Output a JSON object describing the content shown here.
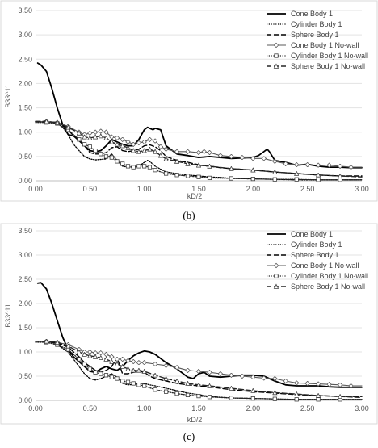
{
  "chart_data": [
    {
      "type": "line",
      "caption": "(b)",
      "xlabel": "kD/2",
      "ylabel": "B33^11",
      "xlim": [
        0,
        3
      ],
      "ylim": [
        0,
        3.5
      ],
      "xticks": [
        "0.00",
        "0.50",
        "1.00",
        "1.50",
        "2.00",
        "2.50",
        "3.00"
      ],
      "yticks": [
        "0.00",
        "0.50",
        "1.00",
        "1.50",
        "2.00",
        "2.50",
        "3.00",
        "3.50"
      ],
      "grid": "horizontal",
      "legend_position": "top-right",
      "series": [
        {
          "name": "Cone Body 1",
          "style": "solid",
          "x": [
            0.02,
            0.05,
            0.1,
            0.15,
            0.2,
            0.25,
            0.3,
            0.35,
            0.4,
            0.45,
            0.5,
            0.55,
            0.6,
            0.65,
            0.7,
            0.75,
            0.8,
            0.85,
            0.9,
            0.95,
            1.0,
            1.03,
            1.05,
            1.08,
            1.1,
            1.15,
            1.2,
            1.3,
            1.4,
            1.5,
            1.6,
            1.7,
            1.8,
            1.9,
            2.0,
            2.05,
            2.1,
            2.13,
            2.15,
            2.2,
            2.3,
            2.4,
            2.5,
            2.6,
            2.7,
            2.8,
            2.9,
            3.0
          ],
          "y": [
            2.42,
            2.38,
            2.25,
            1.9,
            1.5,
            1.15,
            0.95,
            0.92,
            0.85,
            0.72,
            0.62,
            0.6,
            0.62,
            0.72,
            0.85,
            0.8,
            0.75,
            0.72,
            0.72,
            0.85,
            1.05,
            1.1,
            1.08,
            1.05,
            1.08,
            1.05,
            0.72,
            0.55,
            0.52,
            0.48,
            0.5,
            0.48,
            0.46,
            0.47,
            0.48,
            0.52,
            0.6,
            0.65,
            0.6,
            0.42,
            0.38,
            0.32,
            0.34,
            0.3,
            0.28,
            0.28,
            0.27,
            0.27
          ]
        },
        {
          "name": "Cylinder Body 1",
          "style": "dotted",
          "x": [
            0,
            0.1,
            0.2,
            0.25,
            0.3,
            0.35,
            0.4,
            0.45,
            0.5,
            0.55,
            0.6,
            0.65,
            0.7,
            0.75,
            0.8,
            0.85,
            0.9,
            0.95,
            1.0,
            1.03,
            1.06,
            1.1,
            1.2,
            1.3,
            1.4,
            1.5,
            1.6,
            1.7,
            1.8,
            2.0,
            2.2,
            2.4,
            2.6,
            2.8,
            3.0
          ],
          "y": [
            1.22,
            1.2,
            1.18,
            1.1,
            0.95,
            0.75,
            0.62,
            0.5,
            0.45,
            0.43,
            0.44,
            0.45,
            0.55,
            0.42,
            0.3,
            0.28,
            0.28,
            0.3,
            0.38,
            0.42,
            0.38,
            0.3,
            0.18,
            0.15,
            0.12,
            0.1,
            0.08,
            0.07,
            0.05,
            0.04,
            0.03,
            0.02,
            0.02,
            0.02,
            0.02
          ]
        },
        {
          "name": "Sphere Body 1",
          "style": "dashed",
          "x": [
            0,
            0.1,
            0.2,
            0.25,
            0.3,
            0.35,
            0.4,
            0.45,
            0.5,
            0.55,
            0.6,
            0.65,
            0.7,
            0.75,
            0.8,
            0.85,
            0.9,
            0.95,
            1.0,
            1.05,
            1.1,
            1.15,
            1.2,
            1.3,
            1.4,
            1.5,
            1.6,
            1.7,
            1.8,
            2.0,
            2.2,
            2.4,
            2.6,
            2.8,
            3.0
          ],
          "y": [
            1.22,
            1.22,
            1.2,
            1.15,
            1.05,
            0.92,
            0.82,
            0.72,
            0.58,
            0.55,
            0.55,
            0.58,
            0.68,
            0.7,
            0.62,
            0.6,
            0.62,
            0.65,
            0.72,
            0.74,
            0.7,
            0.62,
            0.5,
            0.42,
            0.38,
            0.33,
            0.3,
            0.27,
            0.25,
            0.22,
            0.18,
            0.15,
            0.12,
            0.1,
            0.1
          ]
        },
        {
          "name": "Cone Body 1 No-wall",
          "style": "solid-marker-diamond",
          "x": [
            0,
            0.1,
            0.2,
            0.3,
            0.4,
            0.45,
            0.5,
            0.55,
            0.6,
            0.65,
            0.7,
            0.75,
            0.8,
            0.85,
            0.9,
            0.95,
            1.0,
            1.05,
            1.1,
            1.15,
            1.2,
            1.3,
            1.4,
            1.5,
            1.55,
            1.6,
            1.7,
            1.8,
            1.9,
            2.0,
            2.1,
            2.2,
            2.3,
            2.4,
            2.5,
            2.6,
            2.7,
            2.8,
            2.9,
            3.0
          ],
          "y": [
            1.22,
            1.22,
            1.2,
            1.12,
            1.0,
            0.95,
            0.98,
            1.0,
            1.02,
            1.0,
            0.9,
            0.88,
            0.85,
            0.8,
            0.75,
            0.78,
            0.8,
            0.85,
            0.82,
            0.7,
            0.65,
            0.6,
            0.6,
            0.58,
            0.6,
            0.58,
            0.52,
            0.5,
            0.48,
            0.46,
            0.46,
            0.4,
            0.35,
            0.33,
            0.33,
            0.32,
            0.32,
            0.3,
            0.28,
            0.28
          ]
        },
        {
          "name": "Cylinder Body 1 No-wall",
          "style": "dotted-marker-square",
          "x": [
            0,
            0.1,
            0.2,
            0.3,
            0.4,
            0.45,
            0.5,
            0.55,
            0.6,
            0.65,
            0.7,
            0.75,
            0.8,
            0.85,
            0.9,
            0.95,
            1.0,
            1.05,
            1.1,
            1.2,
            1.3,
            1.4,
            1.5,
            1.6,
            1.8,
            2.0,
            2.2,
            2.4,
            2.6,
            2.8,
            3.0
          ],
          "y": [
            1.2,
            1.2,
            1.18,
            1.05,
            0.85,
            0.75,
            0.7,
            0.62,
            0.55,
            0.5,
            0.48,
            0.4,
            0.35,
            0.3,
            0.28,
            0.3,
            0.3,
            0.28,
            0.22,
            0.15,
            0.12,
            0.1,
            0.08,
            0.06,
            0.05,
            0.04,
            0.03,
            0.03,
            0.02,
            0.02,
            0.02
          ]
        },
        {
          "name": "Sphere Body 1 No-wall",
          "style": "dashed-marker-triangle",
          "x": [
            0,
            0.1,
            0.2,
            0.3,
            0.4,
            0.45,
            0.5,
            0.55,
            0.6,
            0.65,
            0.7,
            0.75,
            0.8,
            0.85,
            0.9,
            0.95,
            1.0,
            1.05,
            1.1,
            1.15,
            1.2,
            1.3,
            1.4,
            1.5,
            1.6,
            1.8,
            2.0,
            2.2,
            2.4,
            2.6,
            2.8,
            3.0
          ],
          "y": [
            1.22,
            1.22,
            1.2,
            1.1,
            0.98,
            0.9,
            0.88,
            0.9,
            0.92,
            0.88,
            0.8,
            0.75,
            0.72,
            0.68,
            0.62,
            0.6,
            0.62,
            0.65,
            0.6,
            0.52,
            0.45,
            0.4,
            0.35,
            0.32,
            0.3,
            0.25,
            0.22,
            0.18,
            0.15,
            0.12,
            0.1,
            0.08
          ]
        }
      ]
    },
    {
      "type": "line",
      "caption": "(c)",
      "xlabel": "kD/2",
      "ylabel": "B33^11",
      "xlim": [
        0,
        3
      ],
      "ylim": [
        0,
        3.5
      ],
      "xticks": [
        "0.00",
        "0.50",
        "1.00",
        "1.50",
        "2.00",
        "2.50",
        "3.00"
      ],
      "yticks": [
        "0.00",
        "0.50",
        "1.00",
        "1.50",
        "2.00",
        "2.50",
        "3.00",
        "3.50"
      ],
      "grid": "horizontal",
      "legend_position": "top-right",
      "series": [
        {
          "name": "Cone Body 1",
          "style": "solid",
          "x": [
            0.02,
            0.05,
            0.1,
            0.15,
            0.2,
            0.25,
            0.3,
            0.35,
            0.4,
            0.45,
            0.5,
            0.55,
            0.6,
            0.65,
            0.7,
            0.75,
            0.8,
            0.85,
            0.9,
            0.95,
            1.0,
            1.05,
            1.1,
            1.2,
            1.3,
            1.4,
            1.45,
            1.5,
            1.55,
            1.6,
            1.7,
            1.8,
            1.9,
            2.0,
            2.1,
            2.2,
            2.3,
            2.4,
            2.5,
            2.6,
            2.7,
            2.8,
            2.9,
            3.0
          ],
          "y": [
            2.42,
            2.43,
            2.3,
            2.0,
            1.65,
            1.3,
            1.05,
            0.9,
            0.8,
            0.7,
            0.6,
            0.58,
            0.65,
            0.7,
            0.65,
            0.62,
            0.7,
            0.82,
            0.92,
            0.98,
            1.02,
            1.0,
            0.95,
            0.78,
            0.65,
            0.48,
            0.45,
            0.55,
            0.58,
            0.5,
            0.48,
            0.5,
            0.52,
            0.52,
            0.5,
            0.4,
            0.32,
            0.3,
            0.3,
            0.3,
            0.28,
            0.27,
            0.27,
            0.27
          ]
        },
        {
          "name": "Cylinder Body 1",
          "style": "dotted",
          "x": [
            0,
            0.1,
            0.2,
            0.3,
            0.35,
            0.4,
            0.45,
            0.5,
            0.55,
            0.6,
            0.65,
            0.7,
            0.75,
            0.8,
            0.85,
            0.9,
            0.95,
            1.0,
            1.05,
            1.1,
            1.2,
            1.3,
            1.4,
            1.5,
            1.6,
            1.8,
            2.0,
            2.2,
            2.4,
            2.6,
            2.8,
            3.0
          ],
          "y": [
            1.22,
            1.2,
            1.15,
            1.0,
            0.85,
            0.7,
            0.55,
            0.45,
            0.42,
            0.45,
            0.5,
            0.55,
            0.48,
            0.35,
            0.32,
            0.33,
            0.35,
            0.35,
            0.32,
            0.3,
            0.25,
            0.2,
            0.15,
            0.12,
            0.08,
            0.05,
            0.04,
            0.03,
            0.02,
            0.02,
            0.02,
            0.02
          ]
        },
        {
          "name": "Sphere Body 1",
          "style": "dashed",
          "x": [
            0,
            0.1,
            0.2,
            0.3,
            0.35,
            0.4,
            0.45,
            0.5,
            0.55,
            0.6,
            0.65,
            0.7,
            0.75,
            0.8,
            0.85,
            0.9,
            0.95,
            1.0,
            1.05,
            1.1,
            1.2,
            1.3,
            1.4,
            1.5,
            1.6,
            1.8,
            2.0,
            2.2,
            2.4,
            2.6,
            2.8,
            3.0
          ],
          "y": [
            1.22,
            1.22,
            1.18,
            1.1,
            1.0,
            0.9,
            0.78,
            0.7,
            0.62,
            0.58,
            0.62,
            0.7,
            0.88,
            0.55,
            0.55,
            0.58,
            0.6,
            0.58,
            0.5,
            0.45,
            0.4,
            0.35,
            0.32,
            0.3,
            0.28,
            0.22,
            0.18,
            0.15,
            0.12,
            0.1,
            0.08,
            0.08
          ]
        },
        {
          "name": "Cone Body 1 No-wall",
          "style": "solid-marker-diamond",
          "x": [
            0,
            0.1,
            0.2,
            0.3,
            0.4,
            0.45,
            0.5,
            0.55,
            0.6,
            0.65,
            0.7,
            0.75,
            0.8,
            0.85,
            0.9,
            0.95,
            1.0,
            1.1,
            1.2,
            1.3,
            1.4,
            1.5,
            1.6,
            1.7,
            1.8,
            1.9,
            2.0,
            2.1,
            2.2,
            2.3,
            2.4,
            2.5,
            2.6,
            2.7,
            2.8,
            2.9,
            3.0
          ],
          "y": [
            1.22,
            1.22,
            1.2,
            1.15,
            1.05,
            1.0,
            1.0,
            0.98,
            0.98,
            0.95,
            0.9,
            0.85,
            0.85,
            0.82,
            0.8,
            0.78,
            0.78,
            0.75,
            0.72,
            0.68,
            0.62,
            0.6,
            0.58,
            0.55,
            0.52,
            0.5,
            0.48,
            0.46,
            0.45,
            0.4,
            0.36,
            0.35,
            0.34,
            0.33,
            0.32,
            0.3,
            0.3
          ]
        },
        {
          "name": "Cylinder Body 1 No-wall",
          "style": "dotted-marker-square",
          "x": [
            0,
            0.1,
            0.2,
            0.3,
            0.4,
            0.45,
            0.5,
            0.55,
            0.6,
            0.65,
            0.7,
            0.75,
            0.8,
            0.85,
            0.9,
            0.95,
            1.0,
            1.1,
            1.2,
            1.3,
            1.4,
            1.5,
            1.6,
            1.8,
            2.0,
            2.2,
            2.4,
            2.6,
            2.8,
            3.0
          ],
          "y": [
            1.2,
            1.2,
            1.15,
            1.05,
            0.85,
            0.75,
            0.65,
            0.58,
            0.55,
            0.52,
            0.48,
            0.45,
            0.4,
            0.38,
            0.35,
            0.32,
            0.3,
            0.22,
            0.18,
            0.14,
            0.11,
            0.09,
            0.07,
            0.05,
            0.04,
            0.03,
            0.02,
            0.02,
            0.02,
            0.02
          ]
        },
        {
          "name": "Sphere Body 1 No-wall",
          "style": "dashed-marker-triangle",
          "x": [
            0,
            0.1,
            0.2,
            0.3,
            0.4,
            0.45,
            0.5,
            0.55,
            0.6,
            0.65,
            0.7,
            0.75,
            0.8,
            0.85,
            0.9,
            0.95,
            1.0,
            1.1,
            1.2,
            1.3,
            1.4,
            1.5,
            1.6,
            1.8,
            2.0,
            2.2,
            2.4,
            2.6,
            2.8,
            3.0
          ],
          "y": [
            1.22,
            1.22,
            1.2,
            1.12,
            1.0,
            0.95,
            0.92,
            0.9,
            0.88,
            0.85,
            0.8,
            0.75,
            0.7,
            0.65,
            0.62,
            0.62,
            0.6,
            0.52,
            0.45,
            0.4,
            0.35,
            0.32,
            0.3,
            0.25,
            0.2,
            0.16,
            0.13,
            0.1,
            0.08,
            0.06
          ]
        }
      ]
    }
  ]
}
